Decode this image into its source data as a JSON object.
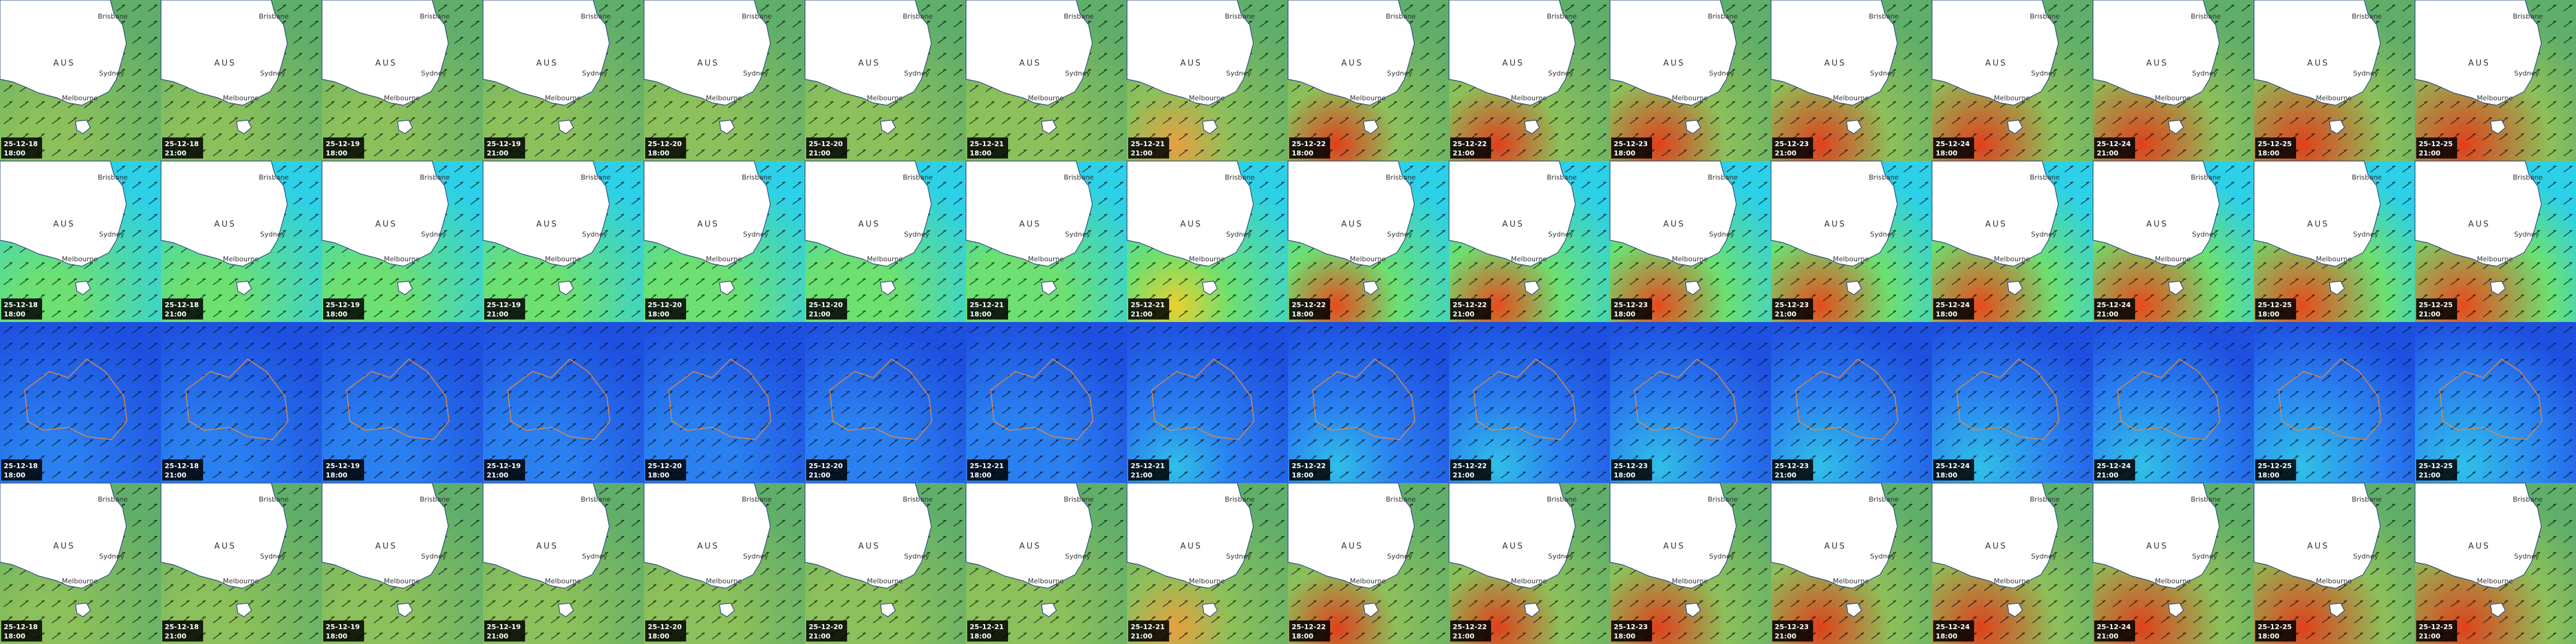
{
  "labels": {
    "country": "AUS",
    "cities": [
      "Brisbane",
      "Sydney",
      "Melbourne"
    ]
  },
  "rows": [
    {
      "zoom": "regional",
      "tiles": [
        {
          "date": "25-12-18",
          "time": "18:00"
        },
        {
          "date": "25-12-18",
          "time": "21:00"
        },
        {
          "date": "25-12-19",
          "time": "18:00"
        },
        {
          "date": "25-12-19",
          "time": "21:00"
        },
        {
          "date": "25-12-20",
          "time": "18:00"
        },
        {
          "date": "25-12-20",
          "time": "21:00"
        },
        {
          "date": "25-12-21",
          "time": "18:00"
        },
        {
          "date": "25-12-21",
          "time": "21:00"
        },
        {
          "date": "25-12-22",
          "time": "18:00"
        },
        {
          "date": "25-12-22",
          "time": "21:00"
        },
        {
          "date": "25-12-23",
          "time": "18:00"
        },
        {
          "date": "25-12-23",
          "time": "21:00"
        },
        {
          "date": "25-12-24",
          "time": "18:00"
        },
        {
          "date": "25-12-24",
          "time": "21:00"
        },
        {
          "date": "25-12-25",
          "time": "18:00"
        },
        {
          "date": "25-12-25",
          "time": "21:00"
        }
      ]
    },
    {
      "zoom": "regional",
      "tiles": [
        {
          "date": "25-12-18",
          "time": "18:00"
        },
        {
          "date": "25-12-18",
          "time": "21:00"
        },
        {
          "date": "25-12-19",
          "time": "18:00"
        },
        {
          "date": "25-12-19",
          "time": "21:00"
        },
        {
          "date": "25-12-20",
          "time": "18:00"
        },
        {
          "date": "25-12-20",
          "time": "21:00"
        },
        {
          "date": "25-12-21",
          "time": "18:00"
        },
        {
          "date": "25-12-21",
          "time": "21:00"
        },
        {
          "date": "25-12-22",
          "time": "18:00"
        },
        {
          "date": "25-12-22",
          "time": "21:00"
        },
        {
          "date": "25-12-23",
          "time": "18:00"
        },
        {
          "date": "25-12-23",
          "time": "21:00"
        },
        {
          "date": "25-12-24",
          "time": "18:00"
        },
        {
          "date": "25-12-24",
          "time": "21:00"
        },
        {
          "date": "25-12-25",
          "time": "18:00"
        },
        {
          "date": "25-12-25",
          "time": "21:00"
        }
      ]
    },
    {
      "zoom": "continental",
      "tiles": [
        {
          "date": "25-12-18",
          "time": "18:00"
        },
        {
          "date": "25-12-18",
          "time": "21:00"
        },
        {
          "date": "25-12-19",
          "time": "18:00"
        },
        {
          "date": "25-12-19",
          "time": "21:00"
        },
        {
          "date": "25-12-20",
          "time": "18:00"
        },
        {
          "date": "25-12-20",
          "time": "21:00"
        },
        {
          "date": "25-12-21",
          "time": "18:00"
        },
        {
          "date": "25-12-21",
          "time": "21:00"
        },
        {
          "date": "25-12-22",
          "time": "18:00"
        },
        {
          "date": "25-12-22",
          "time": "21:00"
        },
        {
          "date": "25-12-23",
          "time": "18:00"
        },
        {
          "date": "25-12-23",
          "time": "21:00"
        },
        {
          "date": "25-12-24",
          "time": "18:00"
        },
        {
          "date": "25-12-24",
          "time": "21:00"
        },
        {
          "date": "25-12-25",
          "time": "18:00"
        },
        {
          "date": "25-12-25",
          "time": "21:00"
        }
      ]
    },
    {
      "zoom": "regional",
      "tiles": [
        {
          "date": "25-12-18",
          "time": "18:00"
        },
        {
          "date": "25-12-18",
          "time": "21:00"
        },
        {
          "date": "25-12-19",
          "time": "18:00"
        },
        {
          "date": "25-12-19",
          "time": "21:00"
        },
        {
          "date": "25-12-20",
          "time": "18:00"
        },
        {
          "date": "25-12-20",
          "time": "21:00"
        },
        {
          "date": "25-12-21",
          "time": "18:00"
        },
        {
          "date": "25-12-21",
          "time": "21:00"
        },
        {
          "date": "25-12-22",
          "time": "18:00"
        },
        {
          "date": "25-12-22",
          "time": "21:00"
        },
        {
          "date": "25-12-23",
          "time": "18:00"
        },
        {
          "date": "25-12-23",
          "time": "21:00"
        },
        {
          "date": "25-12-24",
          "time": "18:00"
        },
        {
          "date": "25-12-24",
          "time": "21:00"
        },
        {
          "date": "25-12-25",
          "time": "18:00"
        },
        {
          "date": "25-12-25",
          "time": "21:00"
        }
      ]
    }
  ]
}
